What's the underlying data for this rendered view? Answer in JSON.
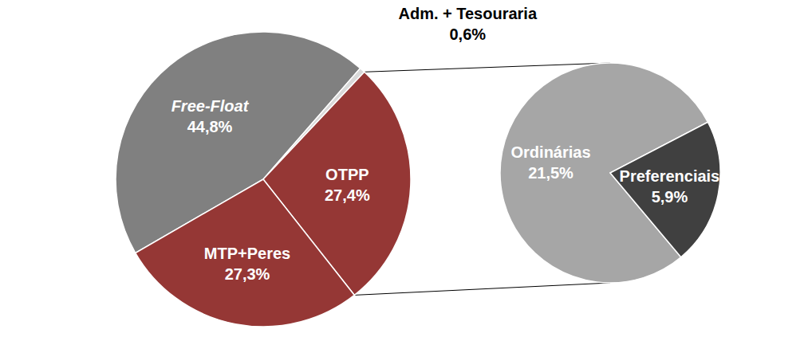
{
  "chart_data": [
    {
      "type": "pie",
      "categories": [
        "Free-Float",
        "Adm. + Tesouraria",
        "OTPP",
        "MTP+Peres"
      ],
      "values": [
        44.8,
        0.6,
        27.4,
        27.3
      ],
      "value_labels": [
        "44,8%",
        "0,6%",
        "27,4%",
        "27,3%"
      ],
      "colors": [
        "#808080",
        "#d9d9d9",
        "#953735",
        "#953735"
      ],
      "data_labels": true
    },
    {
      "type": "pie",
      "categories": [
        "Ordinárias",
        "Preferenciais"
      ],
      "values": [
        21.5,
        5.9
      ],
      "value_labels": [
        "21,5%",
        "5,9%"
      ],
      "colors": [
        "#a6a6a6",
        "#404040"
      ],
      "data_labels": true
    }
  ]
}
